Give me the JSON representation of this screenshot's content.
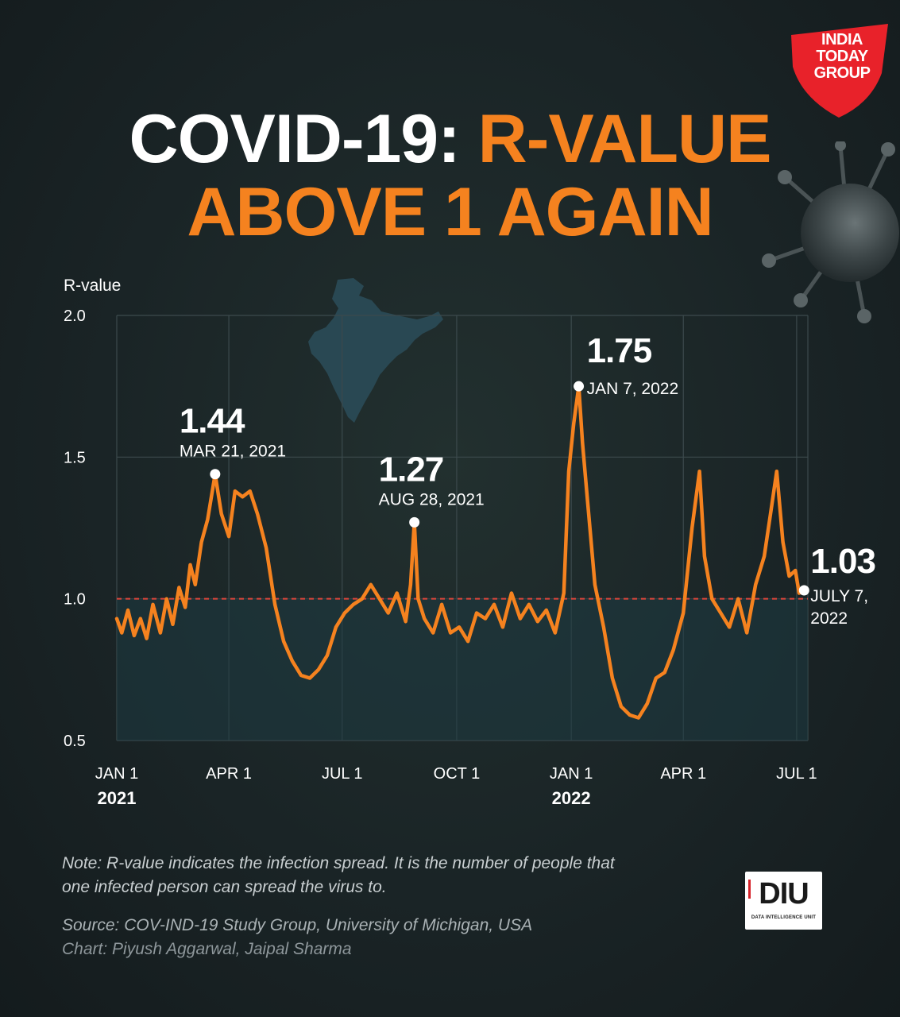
{
  "brand": {
    "logo_text": "INDIA TODAY GROUP"
  },
  "title": {
    "part1": "COVID-19: ",
    "part2": "R-VALUE",
    "line2": "ABOVE 1 AGAIN"
  },
  "colors": {
    "background": "#1a2426",
    "accent": "#f5821f",
    "threshold": "#e0453a",
    "fill": "#1d3a42"
  },
  "chart_data": {
    "type": "line",
    "ylabel": "R-value",
    "ylim": [
      0.5,
      2.0
    ],
    "yticks": [
      "2.0",
      "1.5",
      "1.0",
      "0.5"
    ],
    "xlim": [
      "2021-01-01",
      "2022-07-10"
    ],
    "xticks": [
      {
        "date": "2021-01-01",
        "label": "JAN 1",
        "year": "2021"
      },
      {
        "date": "2021-04-01",
        "label": "APR 1",
        "year": ""
      },
      {
        "date": "2021-07-01",
        "label": "JUL 1",
        "year": ""
      },
      {
        "date": "2021-10-01",
        "label": "OCT 1",
        "year": ""
      },
      {
        "date": "2022-01-01",
        "label": "JAN 1",
        "year": "2022"
      },
      {
        "date": "2022-04-01",
        "label": "APR 1",
        "year": ""
      },
      {
        "date": "2022-07-01",
        "label": "JUL 1",
        "year": ""
      }
    ],
    "threshold": 1.0,
    "grid": true,
    "series": [
      {
        "x": [
          "2021-01-01",
          "2021-01-05",
          "2021-01-10",
          "2021-01-15",
          "2021-01-20",
          "2021-01-25",
          "2021-01-30",
          "2021-02-05",
          "2021-02-10",
          "2021-02-15",
          "2021-02-20",
          "2021-02-25",
          "2021-03-01",
          "2021-03-05",
          "2021-03-10",
          "2021-03-15",
          "2021-03-21",
          "2021-03-26",
          "2021-04-01",
          "2021-04-06",
          "2021-04-12",
          "2021-04-18",
          "2021-04-24",
          "2021-05-01",
          "2021-05-08",
          "2021-05-15",
          "2021-05-22",
          "2021-05-29",
          "2021-06-05",
          "2021-06-12",
          "2021-06-19",
          "2021-06-26",
          "2021-07-03",
          "2021-07-10",
          "2021-07-17",
          "2021-07-24",
          "2021-07-31",
          "2021-08-07",
          "2021-08-14",
          "2021-08-21",
          "2021-08-25",
          "2021-08-28",
          "2021-08-31",
          "2021-09-05",
          "2021-09-12",
          "2021-09-19",
          "2021-09-26",
          "2021-10-03",
          "2021-10-10",
          "2021-10-17",
          "2021-10-24",
          "2021-10-31",
          "2021-11-07",
          "2021-11-14",
          "2021-11-21",
          "2021-11-28",
          "2021-12-05",
          "2021-12-12",
          "2021-12-19",
          "2021-12-26",
          "2021-12-30",
          "2022-01-03",
          "2022-01-07",
          "2022-01-10",
          "2022-01-14",
          "2022-01-20",
          "2022-01-27",
          "2022-02-03",
          "2022-02-10",
          "2022-02-17",
          "2022-02-24",
          "2022-03-03",
          "2022-03-10",
          "2022-03-17",
          "2022-03-24",
          "2022-04-01",
          "2022-04-08",
          "2022-04-14",
          "2022-04-18",
          "2022-04-24",
          "2022-05-01",
          "2022-05-08",
          "2022-05-15",
          "2022-05-22",
          "2022-05-29",
          "2022-06-05",
          "2022-06-10",
          "2022-06-15",
          "2022-06-20",
          "2022-06-25",
          "2022-06-30",
          "2022-07-03",
          "2022-07-07"
        ],
        "values": [
          0.93,
          0.88,
          0.96,
          0.87,
          0.93,
          0.86,
          0.98,
          0.88,
          1.0,
          0.91,
          1.04,
          0.97,
          1.12,
          1.05,
          1.2,
          1.28,
          1.44,
          1.3,
          1.22,
          1.38,
          1.36,
          1.38,
          1.3,
          1.18,
          0.98,
          0.85,
          0.78,
          0.73,
          0.72,
          0.75,
          0.8,
          0.9,
          0.95,
          0.98,
          1.0,
          1.05,
          1.0,
          0.95,
          1.02,
          0.92,
          1.05,
          1.27,
          1.0,
          0.93,
          0.88,
          0.98,
          0.88,
          0.9,
          0.85,
          0.95,
          0.93,
          0.98,
          0.9,
          1.02,
          0.93,
          0.98,
          0.92,
          0.96,
          0.88,
          1.02,
          1.45,
          1.62,
          1.75,
          1.55,
          1.35,
          1.05,
          0.9,
          0.72,
          0.62,
          0.59,
          0.58,
          0.63,
          0.72,
          0.74,
          0.82,
          0.95,
          1.25,
          1.45,
          1.15,
          1.0,
          0.95,
          0.9,
          1.0,
          0.88,
          1.05,
          1.15,
          1.3,
          1.45,
          1.2,
          1.08,
          1.1,
          1.02,
          1.03
        ]
      }
    ],
    "annotations": [
      {
        "value": "1.44",
        "date": "MAR 21, 2021",
        "x": "2021-03-21",
        "y": 1.44
      },
      {
        "value": "1.27",
        "date": "AUG 28, 2021",
        "x": "2021-08-28",
        "y": 1.27
      },
      {
        "value": "1.75",
        "date": "JAN 7, 2022",
        "x": "2022-01-07",
        "y": 1.75
      },
      {
        "value": "1.03",
        "date": "JULY 7,",
        "date2": "2022",
        "x": "2022-07-07",
        "y": 1.03
      }
    ]
  },
  "footer": {
    "note_line1": "Note: R-value indicates the infection spread. It is the number of people that",
    "note_line2": "one infected person can spread the virus to.",
    "source": "Source: COV-IND-19 Study Group, University of Michigan, USA",
    "credit": "Chart: Piyush Aggarwal, Jaipal Sharma",
    "diu_logo": "DIU",
    "diu_sub": "DATA INTELLIGENCE UNIT"
  }
}
